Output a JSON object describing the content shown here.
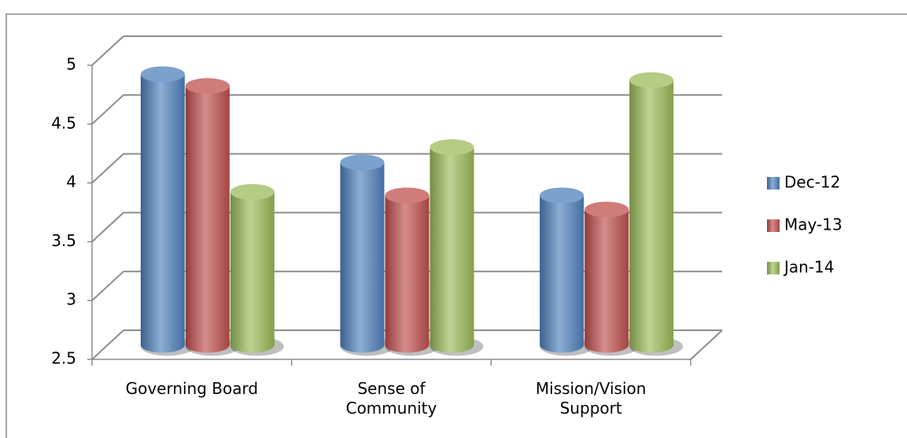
{
  "chart_data": {
    "type": "bar3d",
    "categories": [
      "Governing Board",
      "Sense of Community",
      "Mission/Vision Support"
    ],
    "series": [
      {
        "name": "Dec-12",
        "color": "#4f81bd",
        "values": [
          4.8,
          4.05,
          3.77
        ]
      },
      {
        "name": "May-13",
        "color": "#c0504d",
        "values": [
          4.7,
          3.77,
          3.65
        ]
      },
      {
        "name": "Jan-14",
        "color": "#9bbb59",
        "values": [
          3.8,
          4.18,
          4.75
        ]
      }
    ],
    "ylim": [
      2.5,
      5
    ],
    "yticks": [
      2.5,
      3,
      3.5,
      4,
      4.5,
      5
    ],
    "grid": true,
    "legend": "right"
  }
}
